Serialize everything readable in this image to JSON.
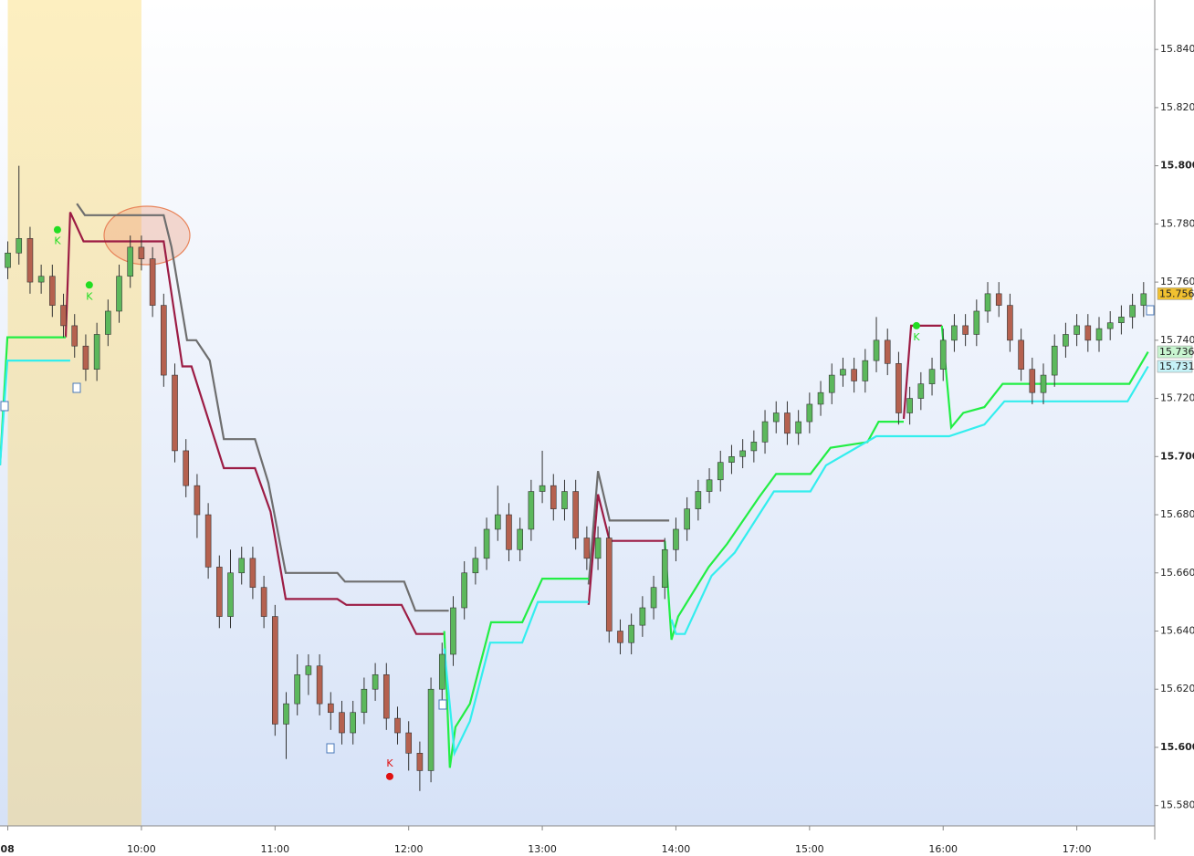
{
  "chart_data": {
    "type": "candlestick",
    "xlim": [
      536.5,
      1055
    ],
    "ylim": [
      15.573,
      15.857
    ],
    "xticks": [
      {
        "value": 540,
        "label": "08"
      },
      {
        "value": 600,
        "label": "10:00"
      },
      {
        "value": 660,
        "label": "11:00"
      },
      {
        "value": 720,
        "label": "12:00"
      },
      {
        "value": 780,
        "label": "13:00"
      },
      {
        "value": 840,
        "label": "14:00"
      },
      {
        "value": 900,
        "label": "15:00"
      },
      {
        "value": 960,
        "label": "16:00"
      },
      {
        "value": 1020,
        "label": "17:00"
      }
    ],
    "yticks": [
      {
        "value": 15.58,
        "label": "15.580"
      },
      {
        "value": 15.6,
        "label": "15.600"
      },
      {
        "value": 15.62,
        "label": "15.620"
      },
      {
        "value": 15.64,
        "label": "15.640"
      },
      {
        "value": 15.66,
        "label": "15.660"
      },
      {
        "value": 15.68,
        "label": "15.680"
      },
      {
        "value": 15.7,
        "label": "15.700"
      },
      {
        "value": 15.72,
        "label": "15.720"
      },
      {
        "value": 15.74,
        "label": "15.740"
      },
      {
        "value": 15.76,
        "label": "15.760"
      },
      {
        "value": 15.78,
        "label": "15.780"
      },
      {
        "value": 15.8,
        "label": "15.800"
      },
      {
        "value": 15.82,
        "label": "15.820"
      },
      {
        "value": 15.84,
        "label": "15.840"
      }
    ],
    "highlight_range": [
      540,
      600
    ],
    "highlight_color": "#fcecbb",
    "up_color": "#5cb85c",
    "down_color": "#b5614f",
    "wick_color": "#333333",
    "x": [
      540,
      545,
      550,
      555,
      560,
      565,
      570,
      575,
      580,
      585,
      590,
      595,
      600,
      605,
      610,
      615,
      620,
      625,
      630,
      635,
      640,
      645,
      650,
      655,
      660,
      665,
      670,
      675,
      680,
      685,
      690,
      695,
      700,
      705,
      710,
      715,
      720,
      725,
      730,
      735,
      740,
      745,
      750,
      755,
      760,
      765,
      770,
      775,
      780,
      785,
      790,
      795,
      800,
      805,
      810,
      815,
      820,
      825,
      830,
      835,
      840,
      845,
      850,
      855,
      860,
      865,
      870,
      875,
      880,
      885,
      890,
      895,
      900,
      905,
      910,
      915,
      920,
      925,
      930,
      935,
      940,
      945,
      950,
      955,
      960,
      965,
      970,
      975,
      980,
      985,
      990,
      995,
      1000,
      1005,
      1010,
      1015,
      1020,
      1025,
      1030,
      1035,
      1040,
      1045,
      1050
    ],
    "open": [
      15.765,
      15.77,
      15.775,
      15.76,
      15.762,
      15.752,
      15.745,
      15.738,
      15.73,
      15.742,
      15.75,
      15.762,
      15.772,
      15.768,
      15.752,
      15.728,
      15.702,
      15.69,
      15.68,
      15.662,
      15.645,
      15.66,
      15.665,
      15.655,
      15.645,
      15.608,
      15.615,
      15.625,
      15.628,
      15.615,
      15.612,
      15.605,
      15.612,
      15.62,
      15.625,
      15.61,
      15.605,
      15.598,
      15.592,
      15.62,
      15.632,
      15.648,
      15.66,
      15.665,
      15.675,
      15.68,
      15.668,
      15.675,
      15.688,
      15.69,
      15.682,
      15.688,
      15.672,
      15.665,
      15.672,
      15.64,
      15.636,
      15.642,
      15.648,
      15.655,
      15.668,
      15.675,
      15.682,
      15.688,
      15.692,
      15.698,
      15.7,
      15.702,
      15.705,
      15.712,
      15.715,
      15.708,
      15.712,
      15.718,
      15.722,
      15.728,
      15.73,
      15.726,
      15.733,
      15.74,
      15.732,
      15.715,
      15.72,
      15.725,
      15.73,
      15.74,
      15.745,
      15.742,
      15.75,
      15.756,
      15.752,
      15.74,
      15.73,
      15.722,
      15.728,
      15.738,
      15.742,
      15.745,
      15.74,
      15.744,
      15.746,
      15.748,
      15.752
    ],
    "high": [
      15.774,
      15.8,
      15.779,
      15.766,
      15.766,
      15.756,
      15.749,
      15.742,
      15.746,
      15.754,
      15.766,
      15.776,
      15.776,
      15.772,
      15.756,
      15.732,
      15.706,
      15.694,
      15.684,
      15.666,
      15.668,
      15.669,
      15.669,
      15.659,
      15.649,
      15.619,
      15.632,
      15.632,
      15.632,
      15.619,
      15.616,
      15.616,
      15.624,
      15.629,
      15.629,
      15.614,
      15.609,
      15.602,
      15.624,
      15.636,
      15.652,
      15.664,
      15.669,
      15.679,
      15.69,
      15.684,
      15.679,
      15.692,
      15.702,
      15.694,
      15.692,
      15.692,
      15.676,
      15.676,
      15.676,
      15.644,
      15.646,
      15.652,
      15.659,
      15.672,
      15.679,
      15.686,
      15.692,
      15.696,
      15.702,
      15.704,
      15.706,
      15.709,
      15.716,
      15.719,
      15.719,
      15.716,
      15.722,
      15.726,
      15.732,
      15.734,
      15.734,
      15.737,
      15.748,
      15.744,
      15.736,
      15.724,
      15.729,
      15.734,
      15.744,
      15.749,
      15.749,
      15.754,
      15.76,
      15.76,
      15.756,
      15.744,
      15.734,
      15.732,
      15.742,
      15.746,
      15.749,
      15.749,
      15.748,
      15.75,
      15.752,
      15.756,
      15.76
    ],
    "low": [
      15.761,
      15.766,
      15.756,
      15.756,
      15.748,
      15.741,
      15.734,
      15.726,
      15.726,
      15.738,
      15.746,
      15.758,
      15.764,
      15.748,
      15.724,
      15.698,
      15.686,
      15.672,
      15.658,
      15.641,
      15.641,
      15.656,
      15.651,
      15.641,
      15.604,
      15.596,
      15.611,
      15.618,
      15.611,
      15.606,
      15.601,
      15.601,
      15.608,
      15.616,
      15.606,
      15.601,
      15.592,
      15.585,
      15.588,
      15.616,
      15.628,
      15.644,
      15.656,
      15.661,
      15.671,
      15.664,
      15.664,
      15.671,
      15.684,
      15.678,
      15.678,
      15.668,
      15.661,
      15.661,
      15.636,
      15.632,
      15.632,
      15.638,
      15.644,
      15.651,
      15.664,
      15.671,
      15.678,
      15.684,
      15.688,
      15.694,
      15.696,
      15.698,
      15.701,
      15.708,
      15.704,
      15.704,
      15.708,
      15.714,
      15.718,
      15.724,
      15.722,
      15.722,
      15.729,
      15.728,
      15.711,
      15.711,
      15.716,
      15.721,
      15.726,
      15.736,
      15.738,
      15.738,
      15.746,
      15.748,
      15.736,
      15.726,
      15.718,
      15.718,
      15.724,
      15.734,
      15.738,
      15.736,
      15.736,
      15.74,
      15.742,
      15.744,
      15.748
    ],
    "close": [
      15.77,
      15.775,
      15.76,
      15.762,
      15.752,
      15.745,
      15.738,
      15.73,
      15.742,
      15.75,
      15.762,
      15.772,
      15.768,
      15.752,
      15.728,
      15.702,
      15.69,
      15.68,
      15.662,
      15.645,
      15.66,
      15.665,
      15.655,
      15.645,
      15.608,
      15.615,
      15.625,
      15.628,
      15.615,
      15.612,
      15.605,
      15.612,
      15.62,
      15.625,
      15.61,
      15.605,
      15.598,
      15.592,
      15.62,
      15.632,
      15.648,
      15.66,
      15.665,
      15.675,
      15.68,
      15.668,
      15.675,
      15.688,
      15.69,
      15.682,
      15.688,
      15.672,
      15.665,
      15.672,
      15.64,
      15.636,
      15.642,
      15.648,
      15.655,
      15.668,
      15.675,
      15.682,
      15.688,
      15.692,
      15.698,
      15.7,
      15.702,
      15.705,
      15.712,
      15.715,
      15.708,
      15.712,
      15.718,
      15.722,
      15.728,
      15.73,
      15.726,
      15.733,
      15.74,
      15.732,
      15.715,
      15.72,
      15.725,
      15.73,
      15.74,
      15.745,
      15.742,
      15.75,
      15.756,
      15.752,
      15.74,
      15.73,
      15.722,
      15.728,
      15.738,
      15.742,
      15.745,
      15.74,
      15.744,
      15.746,
      15.748,
      15.752,
      15.756
    ],
    "overlays": [
      {
        "color": "#6e6e6e",
        "x": [
          571,
          574.6,
          610,
          613.5,
          620.5,
          624.6,
          630.7,
          637,
          651,
          657,
          664.8,
          688,
          691.4,
          718,
          723,
          738,
          null,
          800.8,
          805,
          810.2,
          837
        ],
        "values": [
          15.787,
          15.783,
          15.783,
          15.772,
          15.74,
          15.74,
          15.733,
          15.706,
          15.706,
          15.691,
          15.66,
          15.66,
          15.657,
          15.657,
          15.647,
          15.647,
          null,
          15.656,
          15.695,
          15.678,
          15.678
        ]
      },
      {
        "color": "#9c1c44",
        "x": [
          566,
          568,
          574,
          610,
          618.4,
          622.5,
          637,
          651,
          658,
          664.8,
          688,
          692,
          716.8,
          723.4,
          736,
          null,
          800.8,
          805,
          810.2,
          835,
          null,
          942.3,
          945.6,
          959.4
        ],
        "values": [
          15.741,
          15.784,
          15.774,
          15.774,
          15.731,
          15.731,
          15.696,
          15.696,
          15.681,
          15.651,
          15.651,
          15.649,
          15.649,
          15.639,
          15.639,
          null,
          15.649,
          15.687,
          15.671,
          15.671,
          null,
          15.713,
          15.745,
          15.745
        ]
      },
      {
        "color": "#22ee44",
        "x": [
          536.5,
          539.8,
          566,
          null,
          736,
          738.5,
          741,
          747.5,
          757,
          771,
          780,
          800.8,
          null,
          835,
          838,
          841,
          854.7,
          863,
          877.3,
          885,
          900.4,
          909.4,
          926,
          931,
          942.3,
          null,
          959.4,
          963.6,
          969,
          978.5,
          986.7,
          1043.6,
          1052
        ],
        "values": [
          15.697,
          15.741,
          15.741,
          null,
          15.64,
          15.593,
          15.607,
          15.615,
          15.643,
          15.643,
          15.658,
          15.658,
          null,
          15.671,
          15.637,
          15.645,
          15.662,
          15.67,
          15.686,
          15.694,
          15.694,
          15.703,
          15.705,
          15.712,
          15.712,
          null,
          15.745,
          15.71,
          15.715,
          15.717,
          15.725,
          15.725,
          15.736
        ]
      },
      {
        "color": "#33eeee",
        "x": [
          536.5,
          539.8,
          568,
          null,
          736,
          740.6,
          747.5,
          756.6,
          771,
          778,
          800.8,
          null,
          838,
          840,
          844,
          856,
          866.4,
          884,
          900.4,
          907.4,
          930,
          962.7,
          978.5,
          987.5,
          1042.8,
          1052
        ],
        "values": [
          15.697,
          15.733,
          15.733,
          null,
          15.634,
          15.598,
          15.609,
          15.636,
          15.636,
          15.65,
          15.65,
          null,
          15.644,
          15.639,
          15.639,
          15.659,
          15.667,
          15.688,
          15.688,
          15.697,
          15.707,
          15.707,
          15.711,
          15.719,
          15.719,
          15.731
        ]
      }
    ],
    "markers": [
      {
        "label": "K",
        "x": 562.3,
        "y": 15.778,
        "color": "#22dd22"
      },
      {
        "label": "K",
        "x": 576.6,
        "y": 15.759,
        "color": "#22dd22"
      },
      {
        "label": "K",
        "x": 948,
        "y": 15.745,
        "color": "#22dd22"
      },
      {
        "label": "K",
        "x": 711.5,
        "y": 15.59,
        "color": "#e01010"
      }
    ],
    "price_labels": [
      {
        "value": 15.756,
        "color": "#f0c030"
      },
      {
        "value": 15.736,
        "color": "#c8f5d0"
      },
      {
        "value": 15.731,
        "color": "#c6f3f8"
      }
    ]
  }
}
